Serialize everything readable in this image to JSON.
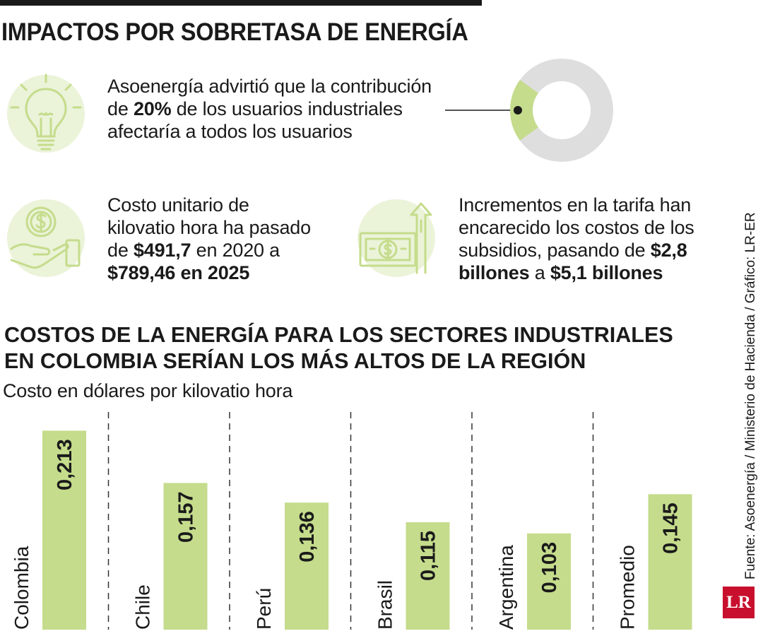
{
  "header": {
    "title": "IMPACTOS POR SOBRETASA DE ENERGÍA"
  },
  "facts": {
    "fact1": {
      "icon": "lightbulb-icon",
      "pre": "Asoenergía advirtió que la contribución",
      "line2_pre": "de ",
      "highlight": "20%",
      "line2_post": " de los usuarios industriales",
      "line3": "afectaría a todos los usuarios",
      "donut_share": 0.2
    },
    "fact2": {
      "icon": "hand-coin-icon",
      "line1": "Costo unitario de",
      "line2": "kilovatio hora ha pasado",
      "line3_pre": "de ",
      "value_from": "$491,7",
      "line3_post": " en 2020 a",
      "value_to": "$789,46 en 2025"
    },
    "fact3": {
      "icon": "money-arrow-icon",
      "line1": "Incrementos en la tarifa han",
      "line2": "encarecido los costos de los",
      "line3_pre": "subsidios, pasando de ",
      "value_from": "$2,8",
      "value_from_unit": "billones",
      "connector": " a ",
      "value_to": "$5,1 billones"
    }
  },
  "colors": {
    "accent": "#c5dc8c",
    "accent_light": "#ebf3d9",
    "donut_rest": "#dedede",
    "logo_red": "#c8102e"
  },
  "chart_data": {
    "type": "bar",
    "title": "COSTOS DE LA ENERGÍA PARA LOS SECTORES INDUSTRIALES EN COLOMBIA SERÍAN LOS MÁS ALTOS DE LA REGIÓN",
    "subtitle": "Costo en dólares por kilovatio hora",
    "categories": [
      "Colombia",
      "Chile",
      "Perú",
      "Brasil",
      "Argentina",
      "Promedio"
    ],
    "values": [
      0.213,
      0.157,
      0.136,
      0.115,
      0.103,
      0.145
    ],
    "value_labels": [
      "0,213",
      "0,157",
      "0,136",
      "0,115",
      "0,103",
      "0,145"
    ],
    "ylim": [
      0,
      0.2345
    ],
    "grid": false,
    "bar_color": "#c5dc8c"
  },
  "footer": {
    "source": "Fuente: Asoenergía / Ministerio de Hacienda / Gráfico: LR-ER",
    "logo_text": "LR"
  }
}
